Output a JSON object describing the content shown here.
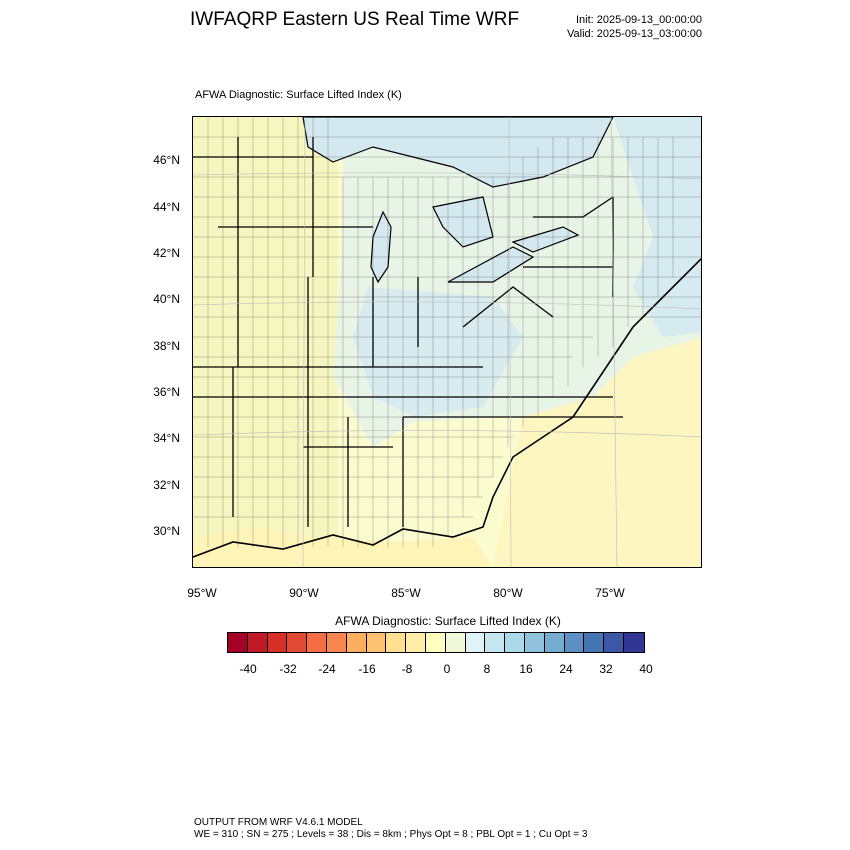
{
  "header": {
    "title": "IWFAQRP Eastern US Real Time WRF",
    "init": "Init: 2025-09-13_00:00:00",
    "valid": "Valid: 2025-09-13_03:00:00"
  },
  "plot": {
    "title": "AFWA Diagnostic: Surface Lifted Index   (K)",
    "lat_labels": [
      "46°N",
      "44°N",
      "42°N",
      "40°N",
      "38°N",
      "36°N",
      "34°N",
      "32°N",
      "30°N"
    ],
    "lon_labels": [
      "95°W",
      "90°W",
      "85°W",
      "80°W",
      "75°W"
    ]
  },
  "colorbar": {
    "title": "AFWA Diagnostic: Surface Lifted Index  (K)",
    "colors": [
      "#a50026",
      "#c01a27",
      "#d73027",
      "#e34a33",
      "#f46d43",
      "#f7874f",
      "#fdae61",
      "#fdc373",
      "#fee090",
      "#ffeeaa",
      "#ffffbf",
      "#f0f9d8",
      "#e0f3f8",
      "#c6e6ef",
      "#abd9e9",
      "#90c2dd",
      "#74add1",
      "#5e8fc3",
      "#4575b4",
      "#3d56a6",
      "#313695"
    ],
    "ticks": [
      "-40",
      "-32",
      "-24",
      "-16",
      "-8",
      "0",
      "8",
      "16",
      "24",
      "32",
      "40"
    ]
  },
  "footer": {
    "line1": "OUTPUT FROM WRF V4.6.1 MODEL",
    "line2": "WE = 310 ; SN = 275 ; Levels = 38 ; Dis = 8km ; Phys Opt = 8 ; PBL Opt = 1 ; Cu Opt = 3"
  }
}
